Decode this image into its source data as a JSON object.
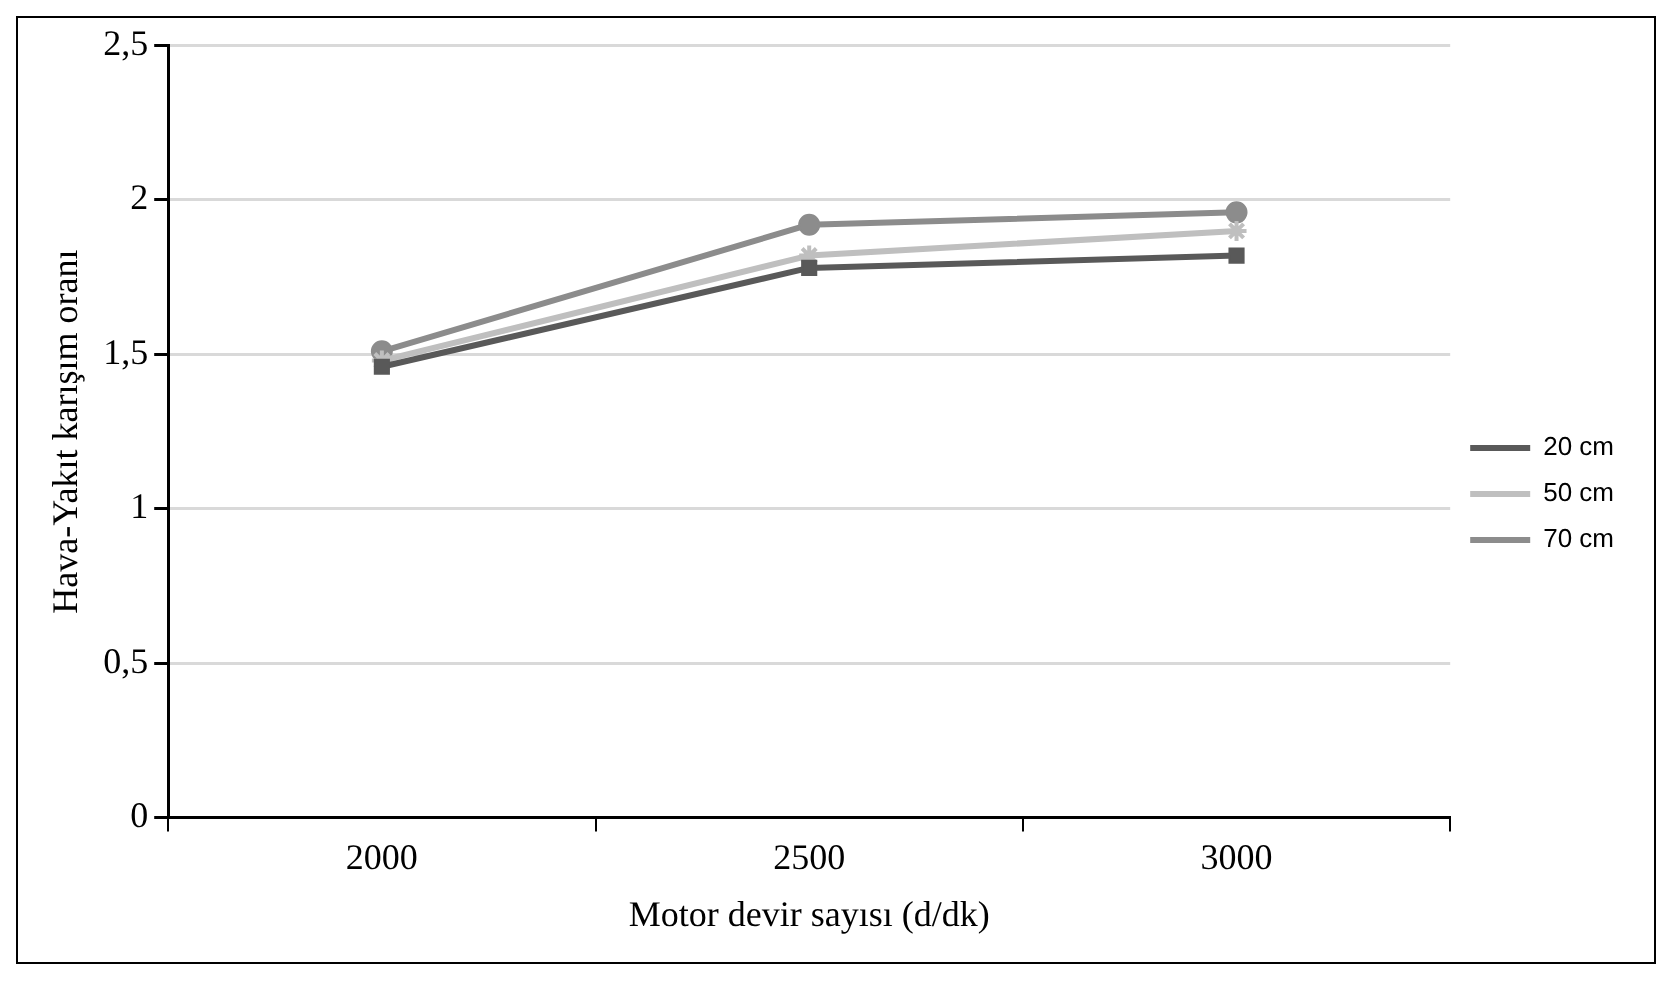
{
  "chart_data": {
    "type": "line",
    "xlabel": "Motor devir sayısı (d/dk)",
    "ylabel": "Hava-Yakıt karışım oranı",
    "categories": [
      "2000",
      "2500",
      "3000"
    ],
    "series": [
      {
        "name": "20 cm",
        "color": "#595959",
        "marker": "square",
        "values": [
          1.46,
          1.78,
          1.82
        ]
      },
      {
        "name": "50 cm",
        "color": "#bfbfbf",
        "marker": "cross",
        "values": [
          1.48,
          1.82,
          1.9
        ]
      },
      {
        "name": "70 cm",
        "color": "#8c8c8c",
        "marker": "circle",
        "values": [
          1.51,
          1.92,
          1.96
        ]
      }
    ],
    "ylim": [
      0,
      2.5
    ],
    "yticks": [
      0,
      {
        "value": 0.5,
        "label": "0,5"
      },
      1,
      {
        "value": 1.5,
        "label": "1,5"
      },
      2,
      {
        "value": 2.5,
        "label": "2,5"
      }
    ],
    "grid": "y",
    "legend": "right",
    "line_style": "solid"
  }
}
